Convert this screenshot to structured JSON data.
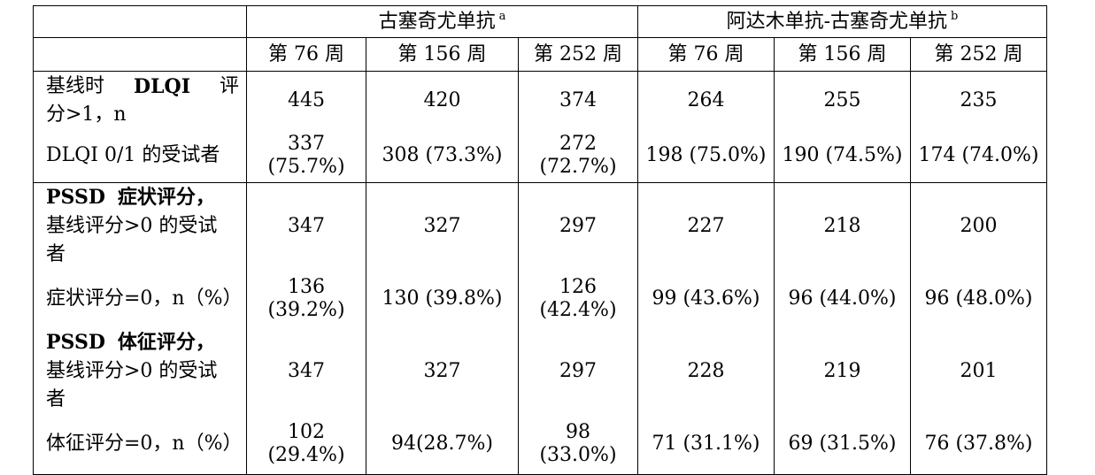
{
  "caption": "",
  "header": {
    "group1": {
      "label": "古塞奇尤单抗",
      "sup": "a"
    },
    "group2": {
      "label": "阿达木单抗-古塞奇尤单抗",
      "sup": "b"
    },
    "weeks": [
      "第 76 周",
      "第 156 周",
      "第 252 周",
      "第 76 周",
      "第 156 周",
      "第 252 周"
    ]
  },
  "rows": {
    "dlqi_baseline": {
      "label_line1_a": "基线时",
      "label_line1_b": "DLQI",
      "label_line1_c": "评",
      "label_line2": "分>1，n",
      "values": [
        "445",
        "420",
        "374",
        "264",
        "255",
        "235"
      ]
    },
    "dlqi_01": {
      "label": "DLQI 0/1 的受试者",
      "g1w76_a": "337",
      "g1w76_b": "(75.7%)",
      "g1w156": "308 (73.3%)",
      "g1w252_a": "272",
      "g1w252_b": "(72.7%)",
      "g2w76": "198 (75.0%)",
      "g2w156": "190 (74.5%)",
      "g2w252": "174 (74.0%)"
    },
    "pssd_symptom_baseline": {
      "label_line1_a": "PSSD",
      "label_line1_b": "症状评分，",
      "label_line2": "基线评分>0 的受试",
      "label_line3": "者",
      "values": [
        "347",
        "327",
        "297",
        "227",
        "218",
        "200"
      ]
    },
    "pssd_symptom_zero": {
      "label": "症状评分=0，n（%）",
      "g1w76_a": "136",
      "g1w76_b": "(39.2%)",
      "g1w156": "130 (39.8%)",
      "g1w252_a": "126",
      "g1w252_b": "(42.4%)",
      "g2w76": "99 (43.6%)",
      "g2w156": "96 (44.0%)",
      "g2w252": "96 (48.0%)"
    },
    "pssd_sign_baseline": {
      "label_line1_a": "PSSD",
      "label_line1_b": "体征评分，",
      "label_line2": "基线评分>0 的受试",
      "label_line3": "者",
      "values": [
        "347",
        "327",
        "297",
        "228",
        "219",
        "201"
      ]
    },
    "pssd_sign_zero": {
      "label": "体征评分=0，n（%）",
      "g1w76_a": "102",
      "g1w76_b": "(29.4%)",
      "g1w156": "94(28.7%)",
      "g1w252_a": "98",
      "g1w252_b": "(33.0%)",
      "g2w76": "71 (31.1%)",
      "g2w156": "69 (31.5%)",
      "g2w252": "76 (37.8%)"
    }
  }
}
